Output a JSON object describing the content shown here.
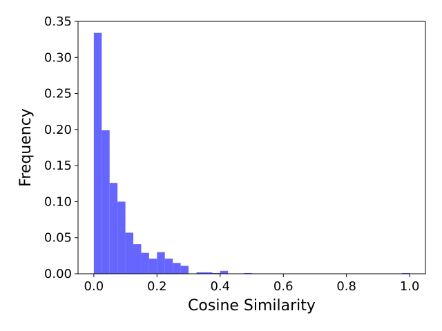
{
  "chart_data": {
    "type": "bar",
    "title": "",
    "xlabel": "Cosine Similarity",
    "ylabel": "Frequency",
    "xlim": [
      -0.05,
      1.05
    ],
    "ylim": [
      0,
      0.35
    ],
    "xticks": [
      0.0,
      0.2,
      0.4,
      0.6,
      0.8,
      1.0
    ],
    "xtick_labels": [
      "0.0",
      "0.2",
      "0.4",
      "0.6",
      "0.8",
      "1.0"
    ],
    "yticks": [
      0.0,
      0.05,
      0.1,
      0.15,
      0.2,
      0.25,
      0.3,
      0.35
    ],
    "ytick_labels": [
      "0.00",
      "0.05",
      "0.10",
      "0.15",
      "0.20",
      "0.25",
      "0.30",
      "0.35"
    ],
    "grid": false,
    "bar_color": "#6666ff",
    "bin_edges": [
      0.0,
      0.025,
      0.05,
      0.075,
      0.1,
      0.125,
      0.15,
      0.175,
      0.2,
      0.225,
      0.25,
      0.275,
      0.3,
      0.325,
      0.35,
      0.375,
      0.4,
      0.425,
      0.45,
      0.475,
      0.5,
      0.525,
      0.55,
      0.575,
      0.6,
      0.625,
      0.65,
      0.675,
      0.7,
      0.725,
      0.75,
      0.775,
      0.8,
      0.825,
      0.85,
      0.875,
      0.9,
      0.925,
      0.95,
      0.975,
      1.0
    ],
    "values": [
      0.334,
      0.199,
      0.126,
      0.1,
      0.057,
      0.041,
      0.029,
      0.021,
      0.03,
      0.021,
      0.015,
      0.011,
      0.0,
      0.002,
      0.002,
      0.001,
      0.004,
      0.0,
      0.0,
      0.001,
      0.0,
      0.0,
      0.0,
      0.0,
      0.0,
      0.0,
      0.0,
      0.0,
      0.0,
      0.0,
      0.0,
      0.0,
      0.0,
      0.0,
      0.0,
      0.0,
      0.0,
      0.0,
      0.0,
      0.001
    ]
  }
}
